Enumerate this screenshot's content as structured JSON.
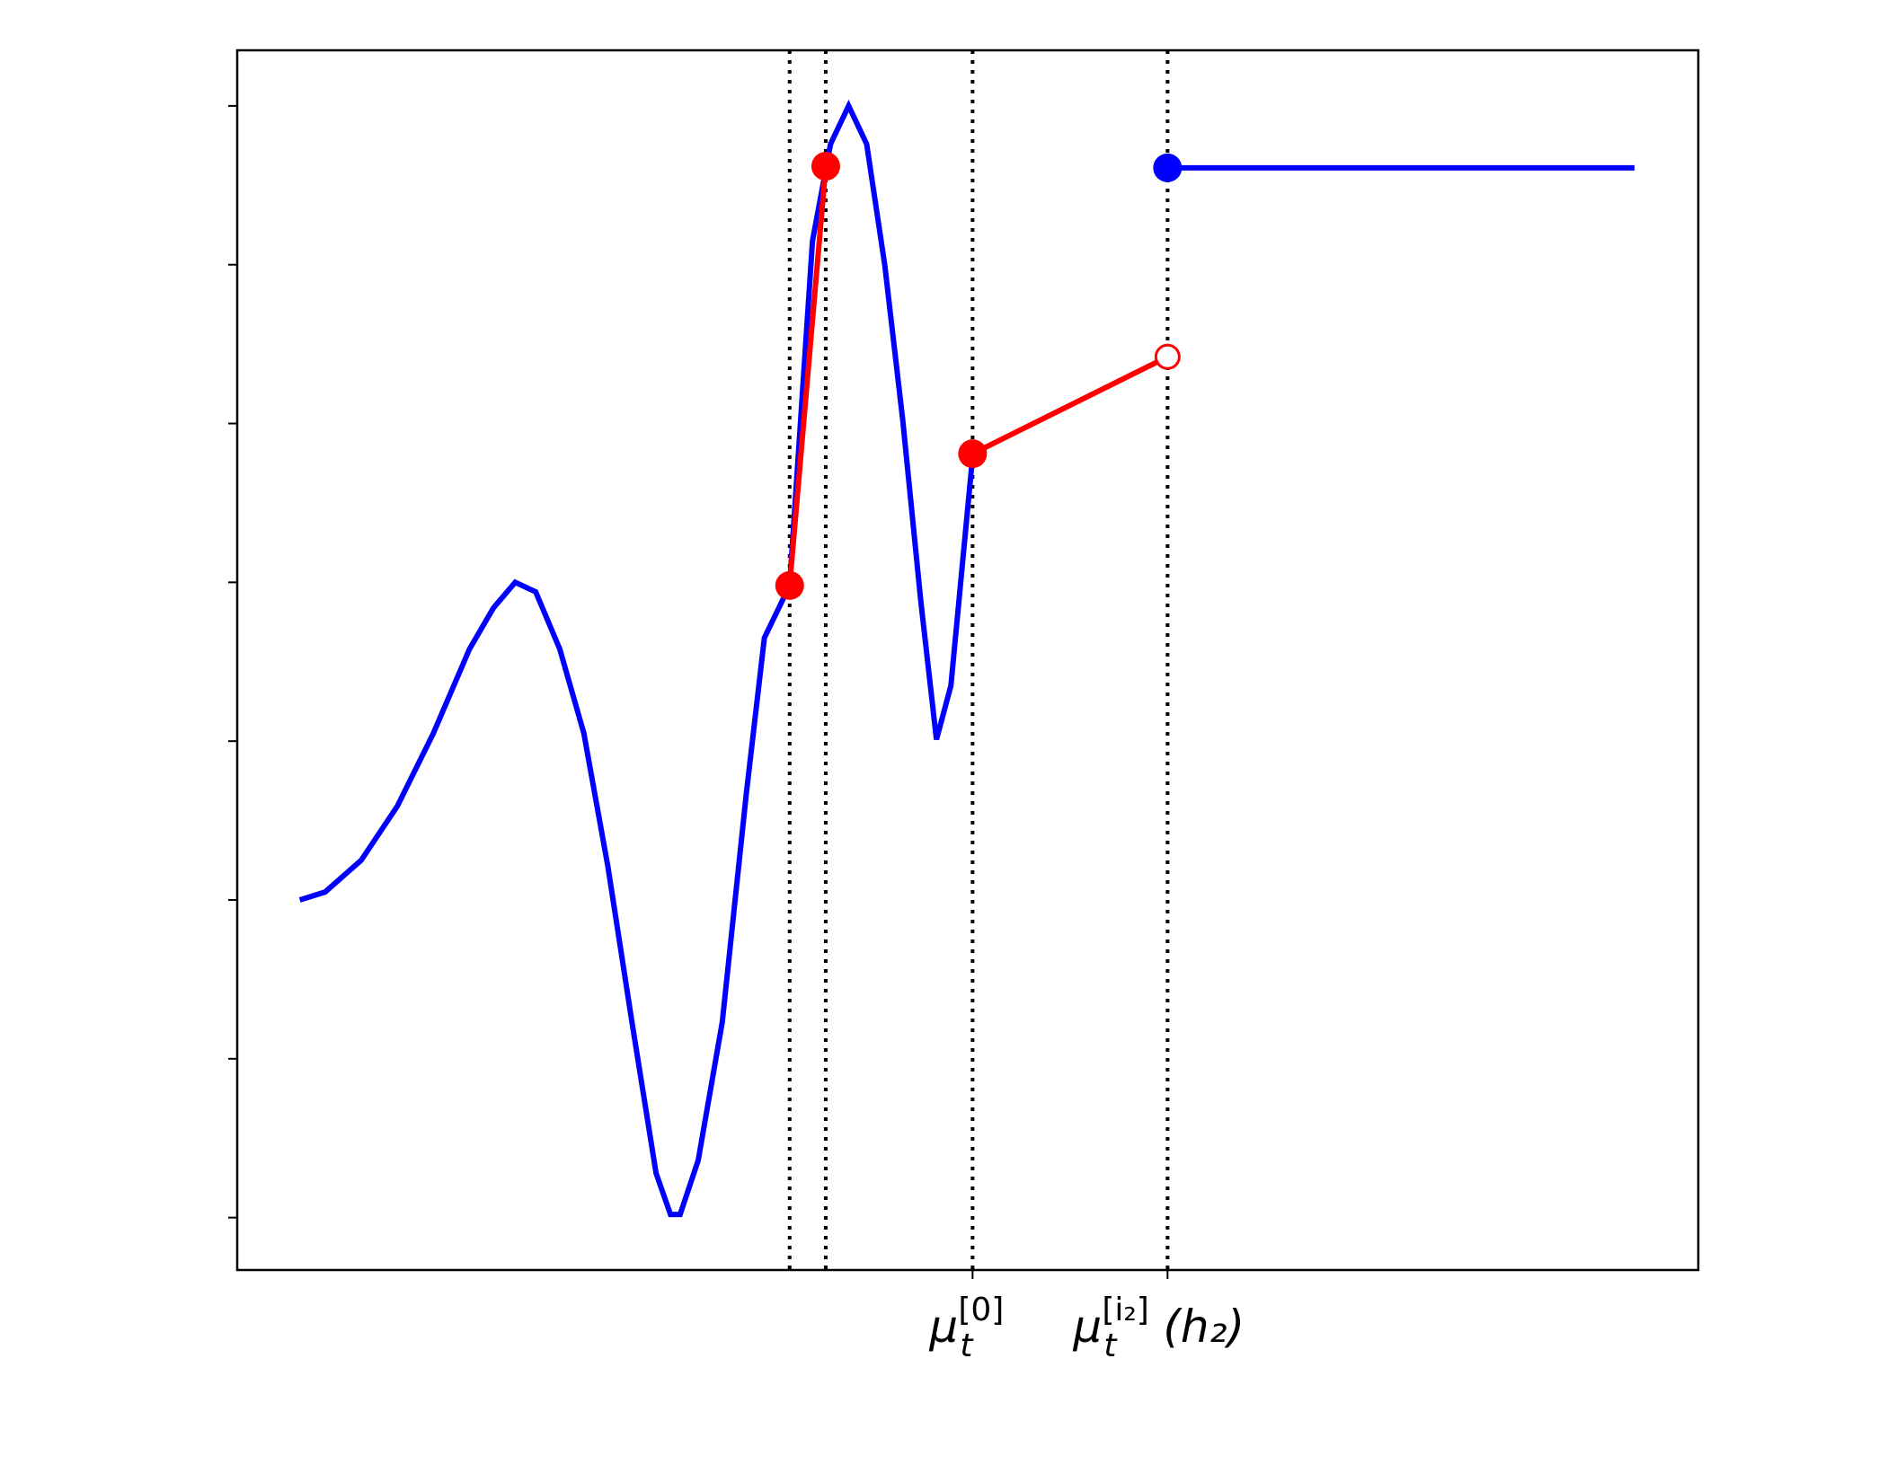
{
  "chart_data": {
    "type": "line",
    "xlim": [
      0,
      12.14
    ],
    "ylim": [
      -3.33,
      4.35
    ],
    "xticks": [
      {
        "value": 6.11,
        "label": [
          "μ",
          "t",
          "[0]"
        ]
      },
      {
        "value": 7.73,
        "label": [
          "μ",
          "t",
          "[i₂]",
          "(h₂)"
        ]
      }
    ],
    "yticks": [
      -3,
      -2,
      -1,
      0,
      1,
      2,
      3,
      4
    ],
    "vlines": [
      4.59,
      4.89,
      6.11,
      7.73
    ],
    "series": [
      {
        "color": "#0000ff",
        "x": [
          0.52,
          0.73,
          1.03,
          1.33,
          1.63,
          1.93,
          2.13,
          2.31,
          2.48,
          2.68,
          2.88,
          3.08,
          3.28,
          3.48,
          3.6,
          3.68,
          3.83,
          4.03,
          4.23,
          4.38,
          4.59,
          4.78,
          4.93,
          5.08,
          5.23,
          5.38,
          5.53,
          5.68,
          5.81,
          5.93,
          6.11
        ],
        "values": [
          -1.0,
          -0.95,
          -0.75,
          -0.41,
          0.05,
          0.58,
          0.84,
          1.0,
          0.94,
          0.58,
          0.05,
          -0.79,
          -1.77,
          -2.72,
          -2.98,
          -2.98,
          -2.64,
          -1.77,
          -0.33,
          0.65,
          0.98,
          3.15,
          3.76,
          4.0,
          3.76,
          3.0,
          2.02,
          0.88,
          0.01,
          0.35,
          1.79
        ]
      },
      {
        "color": "#0000ff",
        "x": [
          7.73,
          11.61
        ],
        "values": [
          3.61,
          3.61
        ],
        "markers": [
          "filled",
          null
        ]
      },
      {
        "color": "#ff0000",
        "x": [
          4.59,
          4.89
        ],
        "values": [
          0.98,
          3.62
        ],
        "markers": [
          "filled",
          "filled"
        ]
      },
      {
        "color": "#ff0000",
        "x": [
          6.11,
          7.73
        ],
        "values": [
          1.81,
          2.42
        ],
        "markers": [
          "filled",
          "open"
        ]
      }
    ]
  }
}
